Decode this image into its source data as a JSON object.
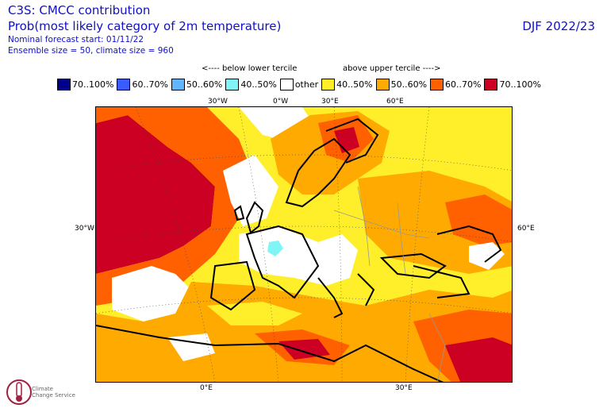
{
  "header": {
    "title": "C3S: CMCC contribution",
    "subtitle": "Prob(most likely category of 2m temperature)",
    "forecast_start": "Nominal forecast start: 01/11/22",
    "ensemble": "Ensemble size = 50, climate size = 960",
    "season": "DJF 2022/23"
  },
  "legend": {
    "below_label": "<---- below lower tercile",
    "above_label": "above upper tercile ---->",
    "items": [
      {
        "label": "70..100%",
        "color": "#00008b"
      },
      {
        "label": "60..70%",
        "color": "#3a5cff"
      },
      {
        "label": "50..60%",
        "color": "#5fb6ff"
      },
      {
        "label": "40..50%",
        "color": "#7ff5f5"
      },
      {
        "label": "other",
        "color": "#ffffff"
      },
      {
        "label": "40..50%",
        "color": "#ffef2a"
      },
      {
        "label": "50..60%",
        "color": "#ffaa00"
      },
      {
        "label": "60..70%",
        "color": "#ff6000"
      },
      {
        "label": "70..100%",
        "color": "#cc0022"
      }
    ]
  },
  "map": {
    "top_labels": [
      "30°W",
      "0°W",
      "30°E",
      "60°E"
    ],
    "left_label": "30°W",
    "right_label": "60°E",
    "bottom_labels": [
      "0°E",
      "30°E"
    ]
  },
  "logo": {
    "line1": "Climate",
    "line2": "Change Service"
  }
}
